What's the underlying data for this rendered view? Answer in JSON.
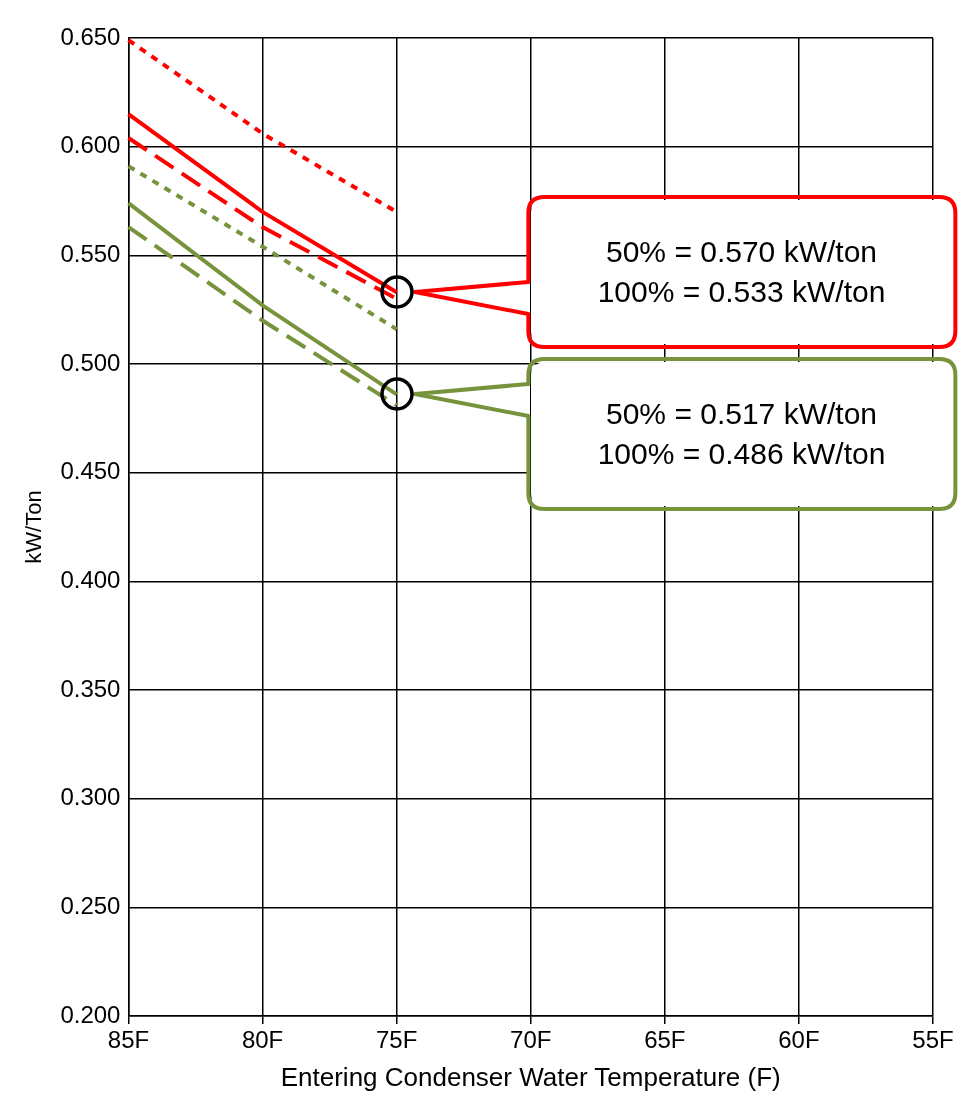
{
  "chart_data": {
    "type": "line",
    "xlabel": "Entering Condenser Water Temperature (F)",
    "ylabel": "kW/Ton",
    "categories": [
      "85F",
      "80F",
      "75F",
      "70F",
      "65F",
      "60F",
      "55F"
    ],
    "series": [
      {
        "color": "#ff0000",
        "line_style": "dotted",
        "values": [
          0.649,
          0.606,
          0.57,
          null,
          null,
          null,
          null
        ]
      },
      {
        "color": "#ff0000",
        "line_style": "solid",
        "values": [
          0.615,
          0.57,
          0.533,
          null,
          null,
          null,
          null
        ]
      },
      {
        "color": "#ff0000",
        "line_style": "dashed",
        "values": [
          0.604,
          0.563,
          0.53,
          null,
          null,
          null,
          null
        ]
      },
      {
        "color": "#77933c",
        "line_style": "dotted",
        "values": [
          0.591,
          0.554,
          0.516,
          null,
          null,
          null,
          null
        ]
      },
      {
        "color": "#77933c",
        "line_style": "solid",
        "values": [
          0.574,
          0.527,
          0.486,
          null,
          null,
          null,
          null
        ]
      },
      {
        "color": "#77933c",
        "line_style": "dashed",
        "values": [
          0.563,
          0.52,
          0.481,
          null,
          null,
          null,
          null
        ]
      }
    ],
    "ylim": [
      0.2,
      0.65
    ],
    "yticks": [
      {
        "value": 0.2,
        "label": "0.200"
      },
      {
        "value": 0.25,
        "label": "0.250"
      },
      {
        "value": 0.3,
        "label": "0.300"
      },
      {
        "value": 0.35,
        "label": "0.350"
      },
      {
        "value": 0.4,
        "label": "0.400"
      },
      {
        "value": 0.45,
        "label": "0.450"
      },
      {
        "value": 0.5,
        "label": "0.500"
      },
      {
        "value": 0.55,
        "label": "0.550"
      },
      {
        "value": 0.6,
        "label": "0.600"
      },
      {
        "value": 0.65,
        "label": "0.650"
      }
    ],
    "grid": true,
    "legend": false,
    "marker": "none",
    "annotations": [
      "50% = 0.570 kW/ton",
      "100% = 0.533 kW/ton",
      "50% = 0.517 kW/ton",
      "100% = 0.486 kW/ton"
    ]
  }
}
